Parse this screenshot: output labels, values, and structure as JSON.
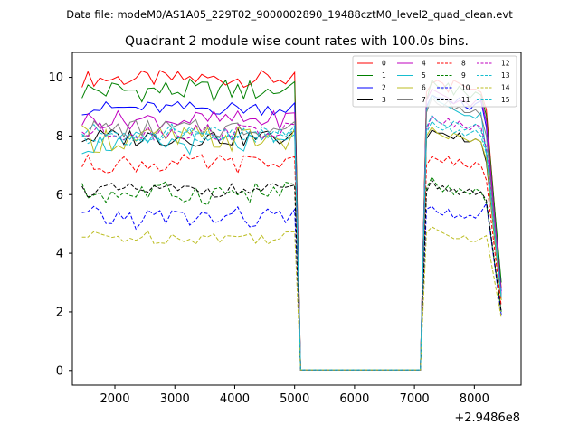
{
  "chart_data": {
    "type": "line",
    "suptitle": "Data file: modeM0/AS1A05_229T02_9000002890_19488cztM0_level2_quad_clean.evt",
    "title": "Quadrant 2 module wise count rates with 100.0s bins.",
    "xlabel": "",
    "ylabel": "",
    "x_offset_label": "+2.9486e8",
    "xlim": [
      1290,
      8780
    ],
    "ylim": [
      -0.5,
      10.85
    ],
    "xticks": [
      2000,
      3000,
      4000,
      5000,
      6000,
      7000,
      8000
    ],
    "yticks": [
      0,
      2,
      4,
      6,
      8,
      10
    ],
    "x_start": 1450,
    "x_step": 100,
    "gap_x": [
      5100,
      7100
    ],
    "end_x": 8450,
    "series": [
      {
        "name": "0",
        "color": "#ff0000",
        "dash": "solid",
        "base": 9.95,
        "amp": 0.18,
        "tail": 2.8,
        "post": [
          9.5,
          9.8,
          9.9,
          9.8,
          9.5,
          9.9,
          9.8,
          9.7,
          9.6,
          9.6,
          9.5,
          8.9
        ]
      },
      {
        "name": "1",
        "color": "#008000",
        "dash": "solid",
        "base": 9.55,
        "amp": 0.25,
        "tail": 3.0,
        "post": [
          9.2,
          9.9,
          9.7,
          9.6,
          9.8,
          9.4,
          9.7,
          9.5,
          9.3,
          9.5,
          9.4,
          8.7
        ]
      },
      {
        "name": "2",
        "color": "#0000ff",
        "dash": "solid",
        "base": 8.95,
        "amp": 0.15,
        "tail": 2.7,
        "post": [
          9.0,
          9.4,
          9.3,
          9.3,
          9.2,
          9.1,
          9.3,
          9.0,
          8.9,
          9.1,
          9.2,
          8.3
        ]
      },
      {
        "name": "3",
        "color": "#000000",
        "dash": "solid",
        "base": 7.95,
        "amp": 0.2,
        "tail": 2.4,
        "post": [
          7.9,
          8.2,
          8.1,
          8.1,
          8.0,
          7.9,
          8.1,
          7.8,
          7.8,
          7.9,
          7.8,
          7.1
        ]
      },
      {
        "name": "4",
        "color": "#bf00bf",
        "dash": "solid",
        "base": 8.55,
        "amp": 0.2,
        "tail": 2.6,
        "post": [
          9.2,
          9.6,
          9.5,
          9.4,
          9.3,
          9.1,
          9.2,
          9.2,
          9.0,
          9.2,
          9.3,
          8.5
        ]
      },
      {
        "name": "5",
        "color": "#17becf",
        "dash": "solid",
        "base": 7.75,
        "amp": 0.25,
        "tail": 2.5,
        "post": [
          8.9,
          9.4,
          9.2,
          9.1,
          9.0,
          8.9,
          8.8,
          8.7,
          8.7,
          8.6,
          8.8,
          7.4
        ]
      },
      {
        "name": "6",
        "color": "#bcbd22",
        "dash": "solid",
        "base": 7.9,
        "amp": 0.3,
        "tail": 2.4,
        "post": [
          8.0,
          8.3,
          8.1,
          8.0,
          7.9,
          8.1,
          8.0,
          7.9,
          7.8,
          7.9,
          7.8,
          7.2
        ]
      },
      {
        "name": "7",
        "color": "#7f7f7f",
        "dash": "solid",
        "base": 8.25,
        "amp": 0.2,
        "tail": 2.5,
        "post": [
          8.8,
          9.3,
          9.1,
          9.0,
          9.2,
          8.9,
          9.0,
          8.8,
          8.8,
          8.9,
          8.7,
          8.0
        ]
      },
      {
        "name": "8",
        "color": "#ff0000",
        "dash": "dashed",
        "base": 7.05,
        "amp": 0.2,
        "tail": 2.2,
        "post": [
          7.0,
          7.3,
          7.2,
          7.1,
          7.3,
          7.0,
          7.2,
          7.0,
          6.9,
          7.1,
          7.0,
          6.5
        ]
      },
      {
        "name": "9",
        "color": "#008000",
        "dash": "dashed",
        "base": 6.05,
        "amp": 0.25,
        "tail": 2.0,
        "post": [
          6.2,
          6.6,
          6.3,
          6.1,
          6.3,
          6.0,
          6.2,
          6.1,
          6.0,
          6.2,
          6.1,
          5.7
        ]
      },
      {
        "name": "10",
        "color": "#0000ff",
        "dash": "dashed",
        "base": 5.2,
        "amp": 0.25,
        "tail": 1.9,
        "post": [
          5.5,
          5.6,
          5.4,
          5.3,
          5.5,
          5.2,
          5.3,
          5.2,
          5.3,
          5.2,
          5.4,
          5.7
        ]
      },
      {
        "name": "11",
        "color": "#000000",
        "dash": "dashed",
        "base": 6.15,
        "amp": 0.15,
        "tail": 2.0,
        "post": [
          6.1,
          6.5,
          6.2,
          6.3,
          6.1,
          6.2,
          6.0,
          6.1,
          6.2,
          6.0,
          6.1,
          5.8
        ]
      },
      {
        "name": "12",
        "color": "#bf00bf",
        "dash": "dashed",
        "base": 8.15,
        "amp": 0.2,
        "tail": 2.5,
        "post": [
          8.2,
          8.7,
          8.5,
          8.4,
          8.6,
          8.3,
          8.5,
          8.3,
          8.2,
          8.4,
          8.3,
          7.6
        ]
      },
      {
        "name": "13",
        "color": "#17becf",
        "dash": "dashed",
        "base": 8.1,
        "amp": 0.2,
        "tail": 2.5,
        "post": [
          8.3,
          8.7,
          8.5,
          8.4,
          8.3,
          8.5,
          8.4,
          8.2,
          8.3,
          8.4,
          8.2,
          7.5
        ]
      },
      {
        "name": "14",
        "color": "#bcbd22",
        "dash": "dashed",
        "base": 4.55,
        "amp": 0.15,
        "tail": 1.8,
        "post": [
          4.7,
          4.9,
          4.8,
          4.7,
          4.6,
          4.5,
          4.5,
          4.6,
          4.4,
          4.4,
          4.5,
          4.6
        ]
      },
      {
        "name": "15",
        "color": "#17becf",
        "dash": "dashed",
        "base": 8.0,
        "amp": 0.2,
        "tail": 2.5,
        "post": [
          8.1,
          8.5,
          8.3,
          8.2,
          8.3,
          8.1,
          8.2,
          8.0,
          8.1,
          8.2,
          8.0,
          7.4
        ]
      }
    ],
    "legend_position": "top-right",
    "legend_columns": 4
  }
}
